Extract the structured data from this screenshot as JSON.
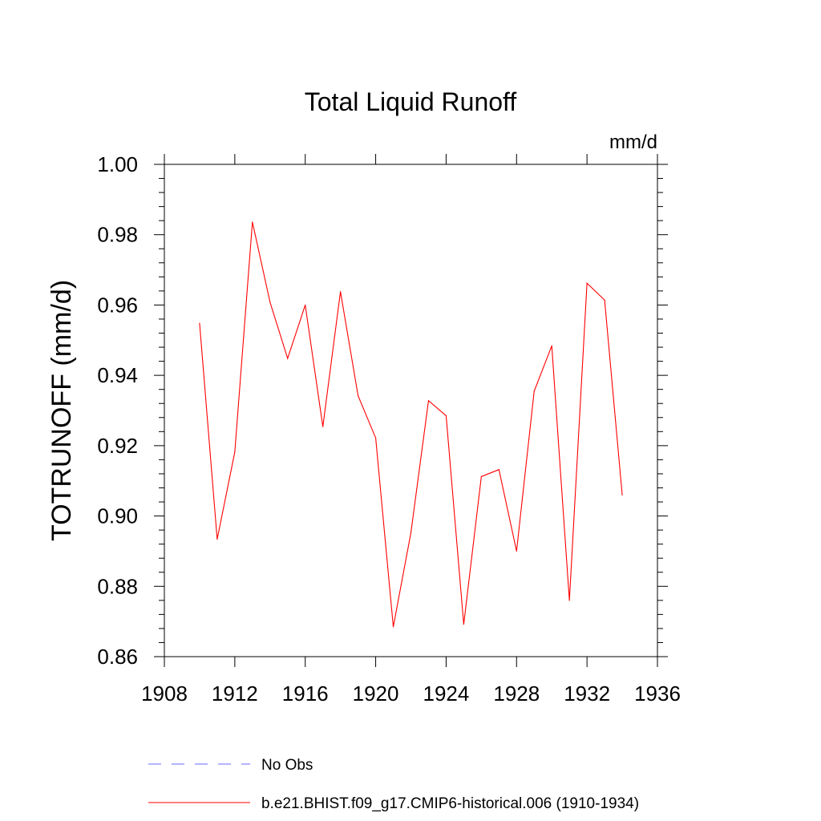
{
  "chart_data": {
    "type": "line",
    "title": "Total Liquid Runoff",
    "units": "mm/d",
    "ylabel": "TOTRUNOFF  (mm/d)",
    "xlabel": "",
    "xlim": [
      1908,
      1936
    ],
    "ylim": [
      0.86,
      1.0
    ],
    "xticks": [
      1908,
      1912,
      1916,
      1920,
      1924,
      1928,
      1932,
      1936
    ],
    "xtick_labels": [
      "1908",
      "1912",
      "1916",
      "1920",
      "1924",
      "1928",
      "1932",
      "1936"
    ],
    "yticks": [
      0.86,
      0.88,
      0.9,
      0.92,
      0.94,
      0.96,
      0.98,
      1.0
    ],
    "ytick_labels": [
      "0.86",
      "0.88",
      "0.90",
      "0.92",
      "0.94",
      "0.96",
      "0.98",
      "1.00"
    ],
    "grid": false,
    "legend_placement": "bottom",
    "series": [
      {
        "name": "b.e21.BHIST.f09_g17.CMIP6-historical.006 (1910-1934)",
        "color": "#ff0000",
        "style": "solid",
        "x": [
          1910,
          1911,
          1912,
          1913,
          1914,
          1915,
          1916,
          1917,
          1918,
          1919,
          1920,
          1921,
          1922,
          1923,
          1924,
          1925,
          1926,
          1927,
          1928,
          1929,
          1930,
          1931,
          1932,
          1933,
          1934
        ],
        "y": [
          0.9548,
          0.8934,
          0.9182,
          0.9836,
          0.9608,
          0.9448,
          0.96,
          0.9254,
          0.9638,
          0.9342,
          0.9222,
          0.8685,
          0.8952,
          0.9328,
          0.9285,
          0.8692,
          0.9112,
          0.9132,
          0.89,
          0.9355,
          0.9484,
          0.876,
          0.9662,
          0.9614,
          0.906
        ]
      }
    ],
    "legend": [
      {
        "label": "No Obs",
        "color": "#6a6aff",
        "style": "dashed"
      },
      {
        "label": "b.e21.BHIST.f09_g17.CMIP6-historical.006 (1910-1934)",
        "color": "#ff0000",
        "style": "solid"
      }
    ]
  }
}
